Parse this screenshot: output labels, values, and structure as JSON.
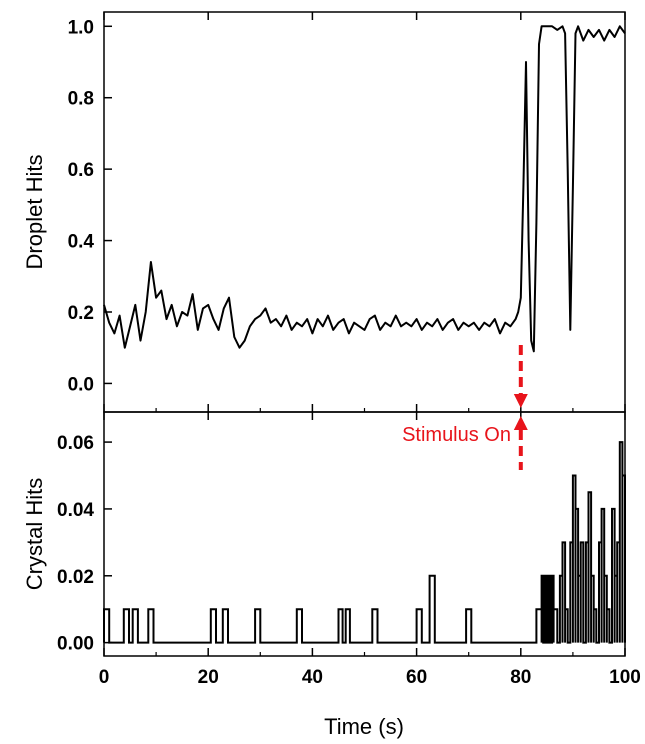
{
  "colors": {
    "line": "#000000",
    "stimulus": "#e8141b",
    "background": "#ffffff"
  },
  "chart_data": [
    {
      "type": "line",
      "panel": "top",
      "ylabel": "Droplet Hits",
      "xlabel": "",
      "xlim": [
        0,
        100
      ],
      "ylim": [
        -0.08,
        1.04
      ],
      "yticks": [
        0.0,
        0.2,
        0.4,
        0.6,
        0.8,
        1.0
      ],
      "ytick_labels": [
        "0.0",
        "0.2",
        "0.4",
        "0.6",
        "0.8",
        "1.0"
      ],
      "grid": false,
      "series": [
        {
          "x": [
            0,
            1,
            2,
            3,
            4,
            5,
            6,
            7,
            8,
            9,
            10,
            11,
            12,
            13,
            14,
            15,
            16,
            17,
            18,
            19,
            20,
            21,
            22,
            23,
            24,
            25,
            26,
            27,
            28,
            29,
            30,
            31,
            32,
            33,
            34,
            35,
            36,
            37,
            38,
            39,
            40,
            41,
            42,
            43,
            44,
            45,
            46,
            47,
            48,
            49,
            50,
            51,
            52,
            53,
            54,
            55,
            56,
            57,
            58,
            59,
            60,
            61,
            62,
            63,
            64,
            65,
            66,
            67,
            68,
            69,
            70,
            71,
            72,
            73,
            74,
            75,
            76,
            77,
            78,
            79,
            79.5,
            80,
            80.5,
            81,
            81.5,
            82,
            82.5,
            83,
            83.5,
            84,
            84.5,
            85,
            86,
            87,
            88,
            88.5,
            89,
            89.5,
            90,
            90.5,
            91,
            92,
            93,
            94,
            95,
            96,
            97,
            98,
            99,
            100
          ],
          "y": [
            0.22,
            0.17,
            0.14,
            0.19,
            0.1,
            0.16,
            0.22,
            0.12,
            0.2,
            0.34,
            0.24,
            0.26,
            0.18,
            0.22,
            0.16,
            0.2,
            0.19,
            0.25,
            0.15,
            0.21,
            0.22,
            0.18,
            0.15,
            0.21,
            0.24,
            0.13,
            0.1,
            0.12,
            0.16,
            0.18,
            0.19,
            0.21,
            0.17,
            0.18,
            0.16,
            0.19,
            0.15,
            0.17,
            0.16,
            0.18,
            0.14,
            0.18,
            0.16,
            0.19,
            0.15,
            0.17,
            0.18,
            0.14,
            0.17,
            0.16,
            0.15,
            0.18,
            0.19,
            0.15,
            0.17,
            0.16,
            0.19,
            0.16,
            0.17,
            0.16,
            0.18,
            0.15,
            0.17,
            0.16,
            0.18,
            0.15,
            0.17,
            0.18,
            0.15,
            0.17,
            0.16,
            0.17,
            0.15,
            0.17,
            0.16,
            0.18,
            0.14,
            0.17,
            0.16,
            0.18,
            0.2,
            0.24,
            0.55,
            0.9,
            0.4,
            0.12,
            0.09,
            0.45,
            0.95,
            1.0,
            1.0,
            1.0,
            1.0,
            0.99,
            1.0,
            0.98,
            0.6,
            0.15,
            0.55,
            0.98,
            1.0,
            0.96,
            0.99,
            0.97,
            0.99,
            0.96,
            0.99,
            0.97,
            1.0,
            0.98
          ]
        }
      ]
    },
    {
      "type": "line",
      "panel": "bottom",
      "ylabel": "Crystal Hits",
      "xlabel": "Time (s)",
      "xlim": [
        0,
        100
      ],
      "ylim": [
        -0.004,
        0.069
      ],
      "yticks": [
        0.0,
        0.02,
        0.04,
        0.06
      ],
      "ytick_labels": [
        "0.00",
        "0.02",
        "0.04",
        "0.06"
      ],
      "xticks": [
        0,
        20,
        40,
        60,
        80,
        100
      ],
      "xtick_labels": [
        "0",
        "20",
        "40",
        "60",
        "80",
        "100"
      ],
      "grid": false,
      "series": [
        {
          "pulses": [
            [
              0.0,
              1.0,
              0.01
            ],
            [
              3.8,
              4.8,
              0.01
            ],
            [
              5.5,
              6.5,
              0.01
            ],
            [
              8.5,
              9.5,
              0.01
            ],
            [
              20.5,
              21.5,
              0.01
            ],
            [
              22.8,
              23.8,
              0.01
            ],
            [
              29.0,
              30.0,
              0.01
            ],
            [
              37.0,
              38.0,
              0.01
            ],
            [
              45.0,
              45.8,
              0.01
            ],
            [
              46.4,
              47.2,
              0.01
            ],
            [
              51.5,
              52.5,
              0.01
            ],
            [
              60.0,
              61.0,
              0.01
            ],
            [
              62.5,
              63.5,
              0.02
            ],
            [
              69.5,
              70.5,
              0.01
            ],
            [
              83.0,
              84.0,
              0.01
            ],
            [
              84.0,
              84.3,
              0.02
            ],
            [
              84.5,
              84.8,
              0.02
            ],
            [
              85.0,
              85.3,
              0.02
            ],
            [
              85.5,
              85.8,
              0.02
            ],
            [
              86.0,
              86.3,
              0.02
            ],
            [
              86.3,
              87.0,
              0.01
            ],
            [
              87.5,
              88.0,
              0.02
            ],
            [
              88.0,
              88.5,
              0.03
            ],
            [
              88.5,
              89.0,
              0.01
            ],
            [
              89.5,
              90.0,
              0.03
            ],
            [
              90.0,
              90.5,
              0.05
            ],
            [
              90.5,
              91.0,
              0.04
            ],
            [
              91.0,
              91.5,
              0.02
            ],
            [
              91.5,
              92.0,
              0.03
            ],
            [
              92.5,
              93.0,
              0.03
            ],
            [
              93.0,
              93.5,
              0.045
            ],
            [
              93.5,
              94.0,
              0.02
            ],
            [
              94.0,
              94.5,
              0.01
            ],
            [
              95.0,
              95.5,
              0.03
            ],
            [
              95.5,
              96.0,
              0.04
            ],
            [
              96.0,
              96.5,
              0.02
            ],
            [
              96.5,
              97.0,
              0.01
            ],
            [
              97.5,
              98.0,
              0.04
            ],
            [
              98.0,
              98.5,
              0.02
            ],
            [
              98.5,
              99.0,
              0.03
            ],
            [
              99.0,
              99.5,
              0.06
            ],
            [
              99.5,
              100.0,
              0.05
            ]
          ]
        }
      ]
    }
  ],
  "annotation": {
    "text": "Stimulus On",
    "x": 80
  }
}
